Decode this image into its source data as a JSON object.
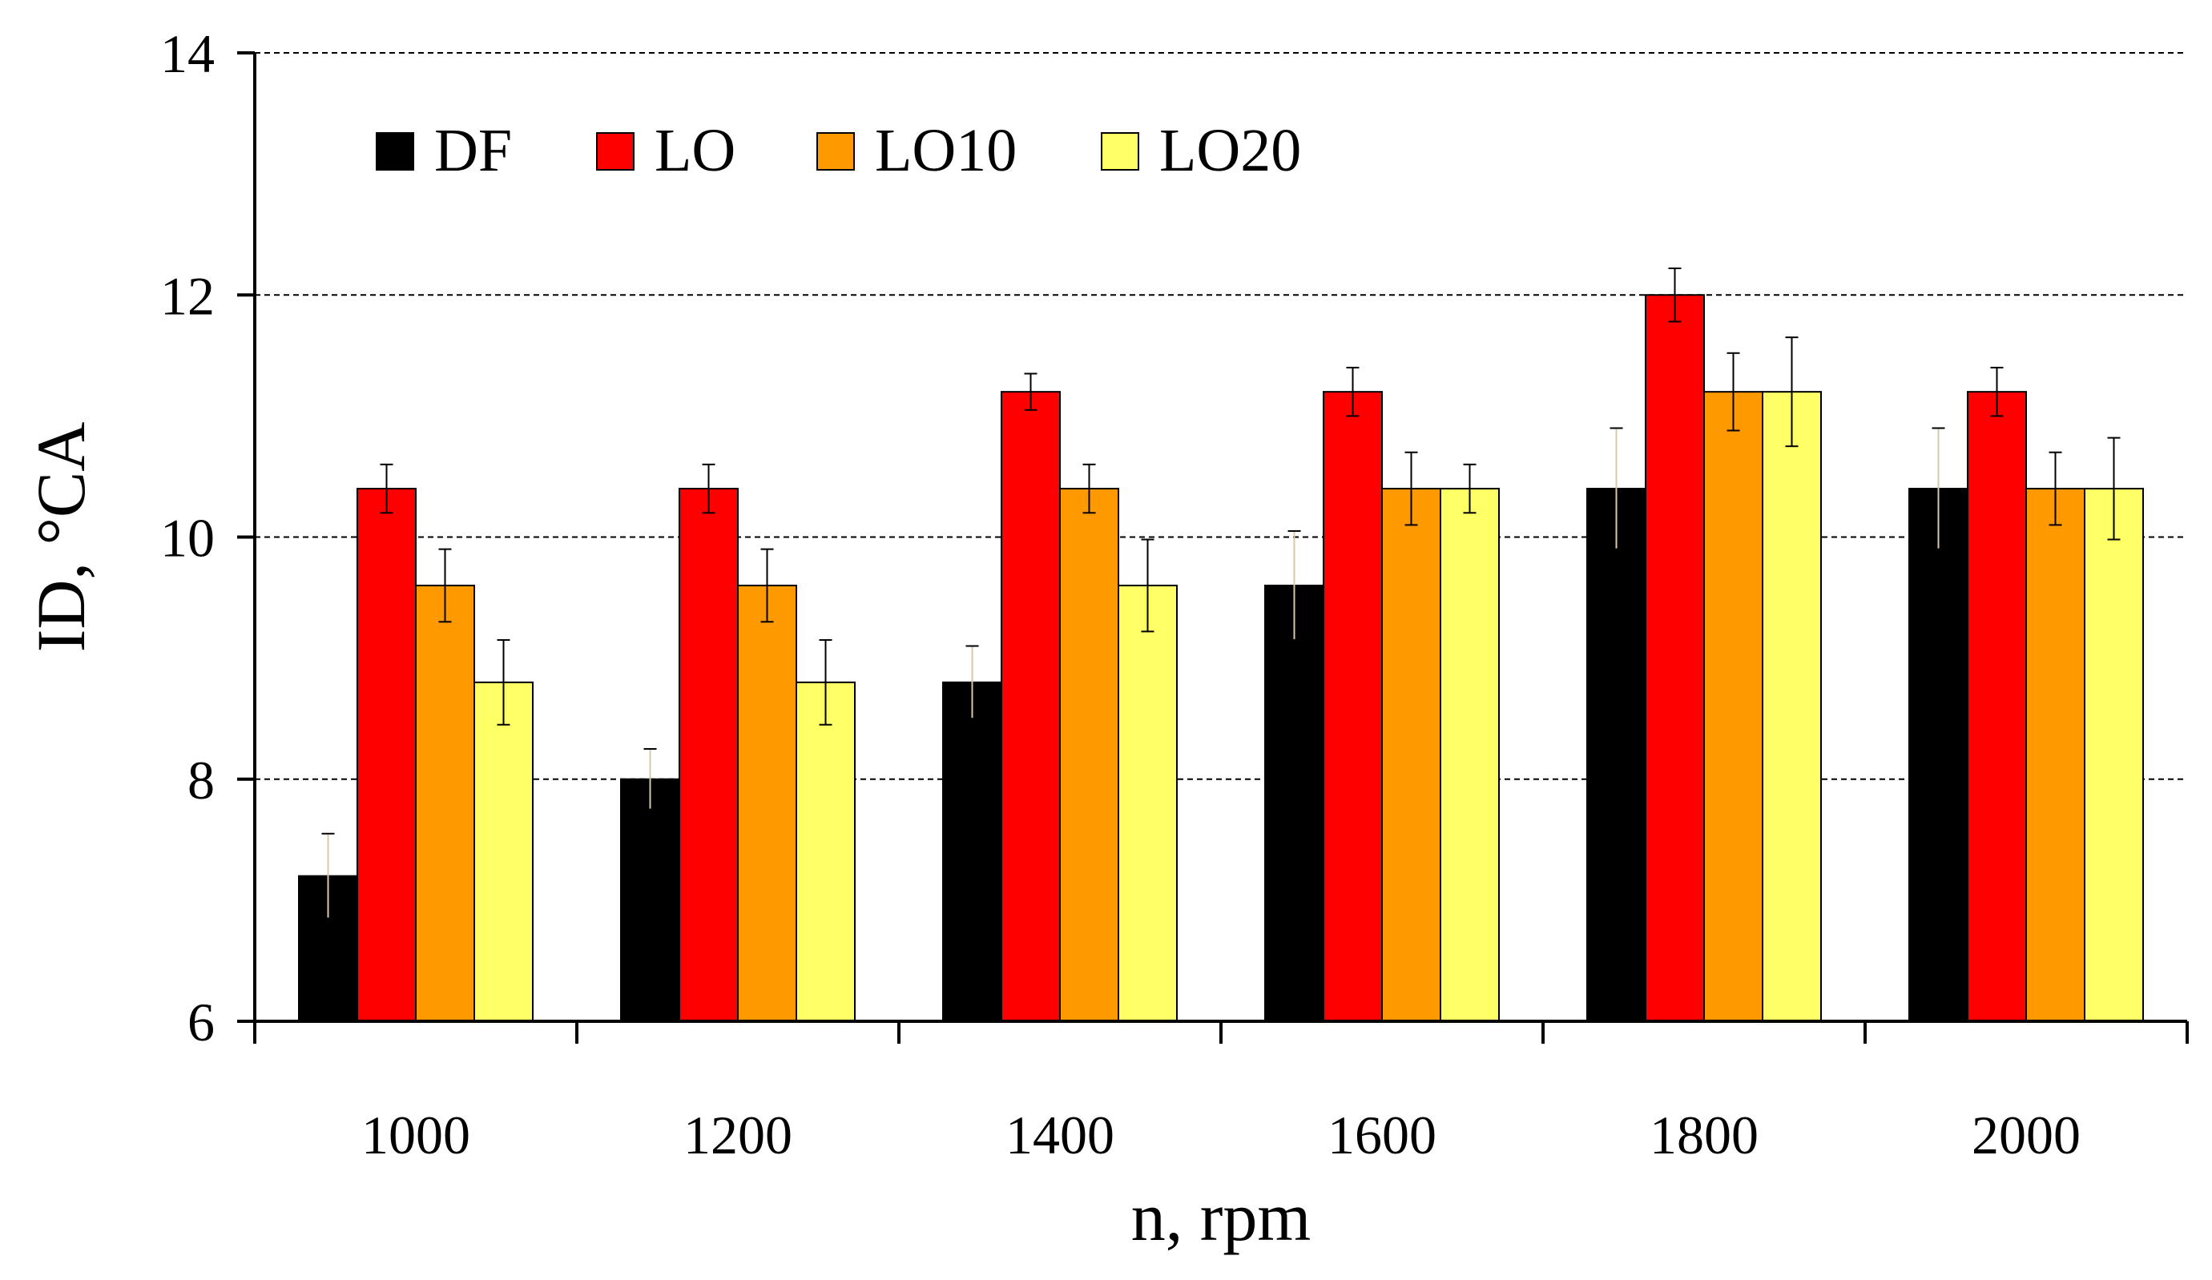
{
  "chart_data": {
    "type": "bar",
    "title": "",
    "xlabel": "n, rpm",
    "ylabel": "ID, °CA",
    "ylim": [
      6,
      14
    ],
    "yticks": [
      6,
      8,
      10,
      12,
      14
    ],
    "grid": "horizontal dashed",
    "legend_position": "top-left",
    "categories": [
      "1000",
      "1200",
      "1400",
      "1600",
      "1800",
      "2000"
    ],
    "series": [
      {
        "name": "DF",
        "color": "#000000",
        "values": [
          7.2,
          8.0,
          8.8,
          9.6,
          10.4,
          10.4
        ],
        "errors": [
          0.35,
          0.25,
          0.3,
          0.45,
          0.5,
          0.5
        ]
      },
      {
        "name": "LO",
        "color": "#ff0000",
        "values": [
          10.4,
          10.4,
          11.2,
          11.2,
          12.0,
          11.2
        ],
        "errors": [
          0.2,
          0.2,
          0.15,
          0.2,
          0.22,
          0.2
        ]
      },
      {
        "name": "LO10",
        "color": "#ff9900",
        "values": [
          9.6,
          9.6,
          10.4,
          10.4,
          11.2,
          10.4
        ],
        "errors": [
          0.3,
          0.3,
          0.2,
          0.3,
          0.32,
          0.3
        ]
      },
      {
        "name": "LO20",
        "color": "#ffff66",
        "values": [
          8.8,
          8.8,
          9.6,
          10.4,
          11.2,
          10.4
        ],
        "errors": [
          0.35,
          0.35,
          0.38,
          0.2,
          0.45,
          0.42
        ]
      }
    ]
  }
}
